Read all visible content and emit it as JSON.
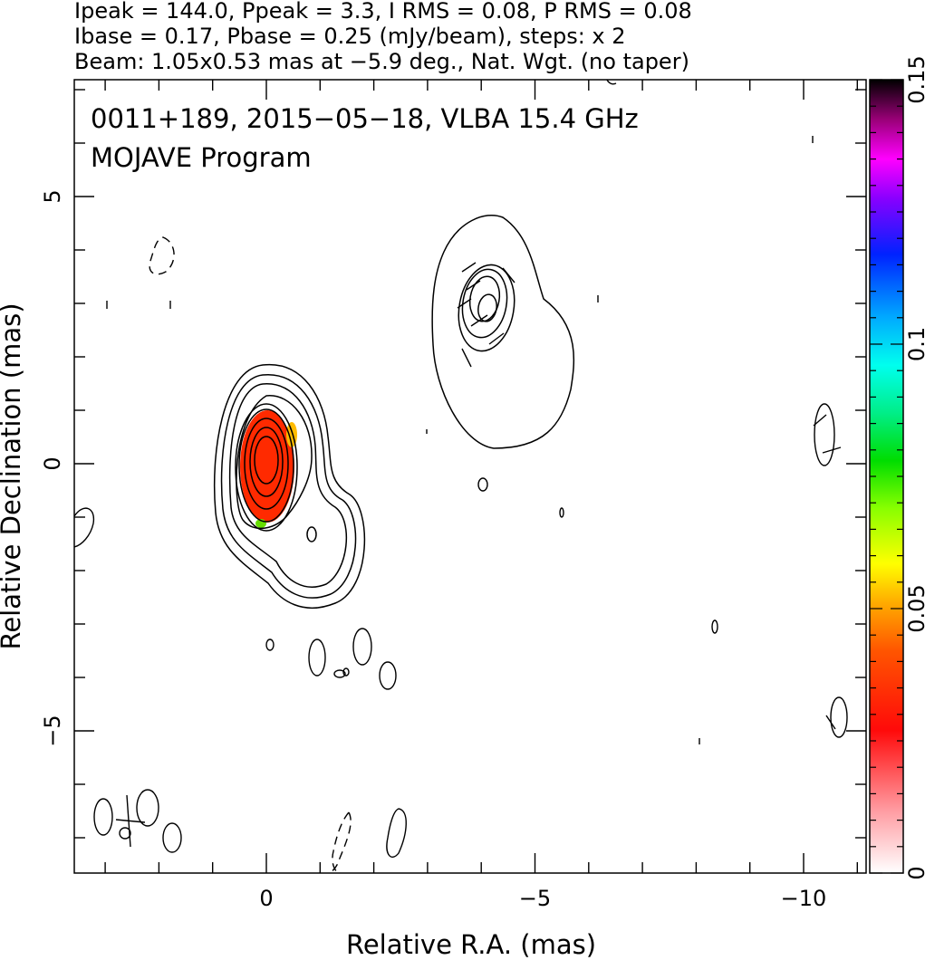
{
  "chart_data": {
    "type": "contour",
    "header": [
      "Ipeak = 144.0, Ppeak = 3.3, I RMS = 0.08, P RMS = 0.08",
      "Ibase = 0.17, Pbase = 0.25 (mJy/beam), steps: x 2",
      "Beam: 1.05x0.53 mas at −5.9 deg., Nat. Wgt. (no taper)"
    ],
    "annotation": [
      "0011+189, 2015−05−18, VLBA 15.4 GHz",
      "MOJAVE Program"
    ],
    "xlabel": "Relative R.A. (mas)",
    "ylabel": "Relative Declination (mas)",
    "xlim": [
      3.5,
      -11.3
    ],
    "ylim": [
      -7.5,
      7.4
    ],
    "x_ticks": [
      {
        "v": 0,
        "label": "0"
      },
      {
        "v": -5,
        "label": "−5"
      },
      {
        "v": -10,
        "label": "−10"
      }
    ],
    "y_ticks": [
      {
        "v": 5,
        "label": "5"
      },
      {
        "v": 0,
        "label": "0"
      },
      {
        "v": -5,
        "label": "−5"
      }
    ],
    "colorbar": {
      "min": 0,
      "max": 0.15,
      "ticks": [
        {
          "v": 0,
          "label": "0"
        },
        {
          "v": 0.05,
          "label": "0.05"
        },
        {
          "v": 0.1,
          "label": "0.1"
        },
        {
          "v": 0.15,
          "label": "0.15"
        }
      ]
    },
    "core": {
      "x": 0,
      "y": 0
    },
    "jet_component": {
      "x": -4.1,
      "y": 2.9
    },
    "colors": {
      "axis": "#000000",
      "contour": "#000000",
      "pol_fill": "#ff2a00"
    }
  }
}
